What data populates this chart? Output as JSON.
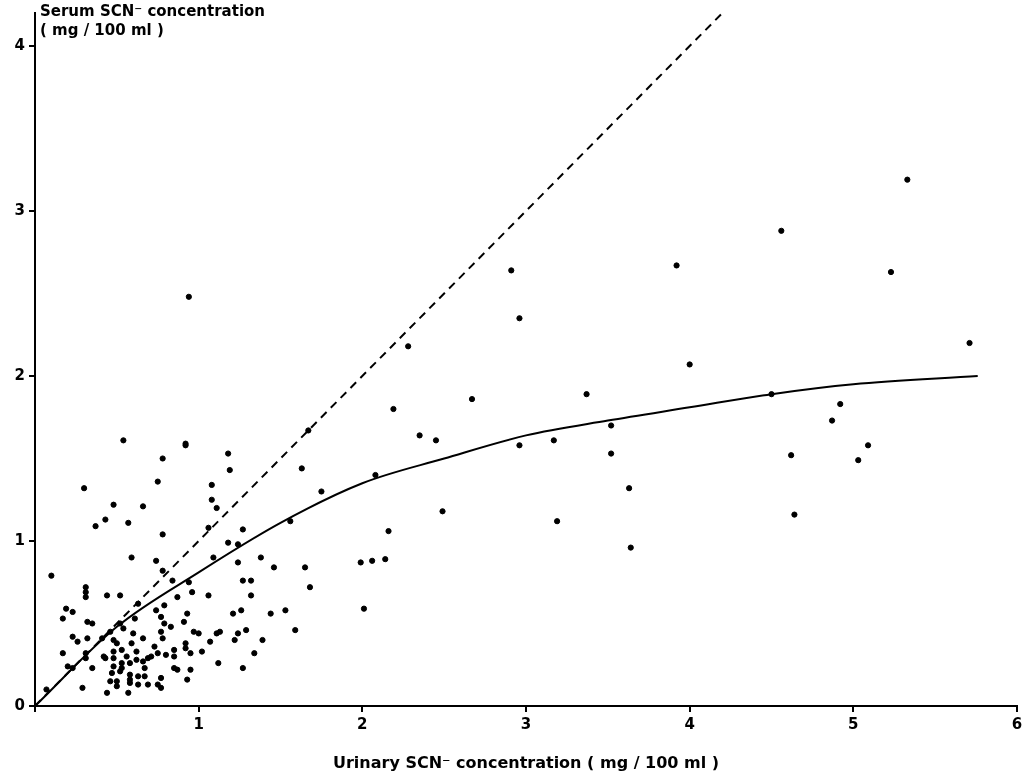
{
  "chart_data": {
    "type": "scatter",
    "xlabel": "Urinary SCN⁻ concentration ( mg / 100 ml )",
    "ylabel": "Serum SCN⁻ concentration ( mg / 100 ml )",
    "xlim": [
      0,
      6
    ],
    "xticks": [
      {
        "value": 0,
        "label": null
      },
      1,
      2,
      3,
      4,
      5,
      6
    ],
    "ylim": [
      0,
      4.2
    ],
    "yticks": [
      0,
      1,
      2,
      3,
      4
    ],
    "grid": false,
    "legend": false,
    "marker": "circle",
    "series": [
      {
        "type": "scatter",
        "color": "#000000",
        "x": [
          2.28,
          2.19,
          2.35,
          1.67,
          1.63,
          1.75,
          2.08,
          2.16,
          1.99,
          2.06,
          2.14,
          2.01,
          0.92,
          1.18,
          1.19,
          1.08,
          1.08,
          1.11,
          1.06,
          1.27,
          1.18,
          1.24,
          1.09,
          1.56,
          1.24,
          1.38,
          1.46,
          1.65,
          1.68,
          1.27,
          1.32,
          1.32,
          0.94,
          0.96,
          1.06,
          1.44,
          1.53,
          1.59,
          1.26,
          1.21,
          1.29,
          1.24,
          1.39,
          1.22,
          1.13,
          1.11,
          1.07,
          0.97,
          1.0,
          0.93,
          0.91,
          0.92,
          0.92,
          0.95,
          1.02,
          1.34,
          1.12,
          1.27,
          0.95,
          0.93,
          0.54,
          0.92,
          0.78,
          0.75,
          0.3,
          0.48,
          0.66,
          0.43,
          0.37,
          0.57,
          0.78,
          0.59,
          0.74,
          0.1,
          0.78,
          0.84,
          0.31,
          0.31,
          0.31,
          0.44,
          0.52,
          0.87,
          0.63,
          0.79,
          0.19,
          0.23,
          0.17,
          0.74,
          0.77,
          0.79,
          0.61,
          0.32,
          0.35,
          0.54,
          0.6,
          0.77,
          0.83,
          0.23,
          0.26,
          0.32,
          0.41,
          0.48,
          0.66,
          0.78,
          0.5,
          0.59,
          0.73,
          0.17,
          0.31,
          0.42,
          0.48,
          0.53,
          0.56,
          0.62,
          0.69,
          0.75,
          0.8,
          0.85,
          0.85,
          0.43,
          0.48,
          0.53,
          0.58,
          0.62,
          0.66,
          0.71,
          0.2,
          0.23,
          0.31,
          0.35,
          0.48,
          0.53,
          0.67,
          0.85,
          0.87,
          0.47,
          0.52,
          0.58,
          0.63,
          0.67,
          0.46,
          0.5,
          0.58,
          0.77,
          0.5,
          0.58,
          0.63,
          0.69,
          0.75,
          0.77,
          0.44,
          0.57,
          0.29,
          0.07,
          0.46,
          0.52,
          0.94,
          5.33,
          4.56,
          3.92,
          2.91,
          5.23,
          2.96,
          5.71,
          4.0,
          2.67,
          3.37,
          4.5,
          4.92,
          4.87,
          2.45,
          2.96,
          3.17,
          3.52,
          3.52,
          4.62,
          5.09,
          5.03,
          3.63,
          2.49,
          3.19,
          4.64,
          3.64
        ],
        "values": [
          2.18,
          1.8,
          1.64,
          1.67,
          1.44,
          1.3,
          1.4,
          1.06,
          0.87,
          0.88,
          0.89,
          0.59,
          1.59,
          1.53,
          1.43,
          1.34,
          1.25,
          1.2,
          1.08,
          1.07,
          0.99,
          0.98,
          0.9,
          1.12,
          0.87,
          0.9,
          0.84,
          0.84,
          0.72,
          0.76,
          0.76,
          0.67,
          0.75,
          0.69,
          0.67,
          0.56,
          0.58,
          0.46,
          0.58,
          0.56,
          0.46,
          0.44,
          0.4,
          0.4,
          0.45,
          0.44,
          0.39,
          0.45,
          0.44,
          0.56,
          0.51,
          0.38,
          0.35,
          0.32,
          0.33,
          0.32,
          0.26,
          0.23,
          0.22,
          0.16,
          1.61,
          1.58,
          1.5,
          1.36,
          1.32,
          1.22,
          1.21,
          1.13,
          1.09,
          1.11,
          1.04,
          0.9,
          0.88,
          0.79,
          0.82,
          0.76,
          0.72,
          0.69,
          0.66,
          0.67,
          0.67,
          0.66,
          0.62,
          0.61,
          0.59,
          0.57,
          0.53,
          0.58,
          0.54,
          0.5,
          0.53,
          0.51,
          0.5,
          0.47,
          0.44,
          0.45,
          0.48,
          0.42,
          0.39,
          0.41,
          0.41,
          0.4,
          0.41,
          0.41,
          0.38,
          0.38,
          0.36,
          0.32,
          0.32,
          0.3,
          0.33,
          0.34,
          0.3,
          0.33,
          0.29,
          0.32,
          0.31,
          0.34,
          0.3,
          0.29,
          0.29,
          0.26,
          0.26,
          0.28,
          0.27,
          0.3,
          0.24,
          0.23,
          0.29,
          0.23,
          0.24,
          0.23,
          0.23,
          0.23,
          0.22,
          0.2,
          0.21,
          0.19,
          0.18,
          0.18,
          0.15,
          0.15,
          0.16,
          0.17,
          0.12,
          0.14,
          0.13,
          0.13,
          0.13,
          0.11,
          0.08,
          0.08,
          0.11,
          0.1,
          0.45,
          0.5,
          2.48,
          3.19,
          2.88,
          2.67,
          2.64,
          2.63,
          2.35,
          2.2,
          2.07,
          1.86,
          1.89,
          1.89,
          1.83,
          1.73,
          1.61,
          1.58,
          1.61,
          1.7,
          1.53,
          1.52,
          1.58,
          1.49,
          1.32,
          1.18,
          1.12,
          1.16,
          0.96
        ]
      },
      {
        "type": "line",
        "color": "#000000",
        "marker": "none",
        "line_style": "solid",
        "x": [
          0,
          0.5,
          1,
          1.5,
          2,
          2.5,
          3,
          3.5,
          4,
          4.5,
          5,
          5.76
        ],
        "values": [
          0,
          0.48,
          0.81,
          1.11,
          1.35,
          1.5,
          1.64,
          1.73,
          1.81,
          1.89,
          1.95,
          2.0
        ]
      },
      {
        "type": "line",
        "color": "#000000",
        "marker": "none",
        "line_style": "dashed",
        "x": [
          0,
          4.2
        ],
        "values": [
          0,
          4.2
        ]
      }
    ]
  }
}
